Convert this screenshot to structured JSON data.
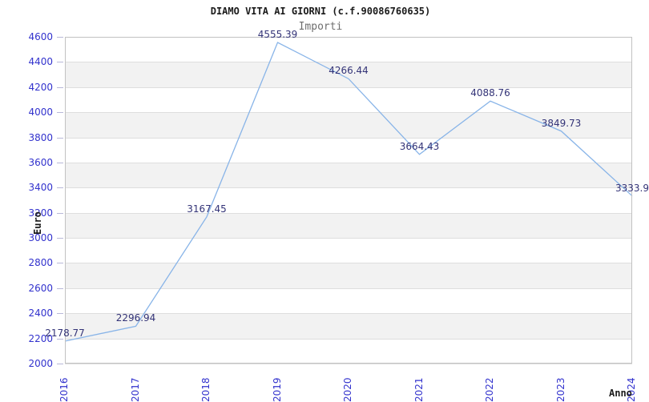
{
  "title": "DIAMO VITA AI GIORNI (c.f.90086760635)",
  "subtitle": "Importi",
  "y_axis_title": "Euro",
  "x_axis_title": "Anno",
  "chart_data": {
    "type": "line",
    "title": "DIAMO VITA AI GIORNI (c.f.90086760635)",
    "subtitle": "Importi",
    "xlabel": "Anno",
    "ylabel": "Euro",
    "x": [
      2016,
      2017,
      2018,
      2019,
      2020,
      2021,
      2022,
      2023,
      2024
    ],
    "series": [
      {
        "name": "Importi",
        "values": [
          2178.77,
          2296.94,
          3167.45,
          4555.39,
          4266.44,
          3664.43,
          4088.76,
          3849.73,
          3333.9
        ]
      }
    ],
    "point_labels": [
      "2178.77",
      "2296.94",
      "3167.45",
      "4555.39",
      "4266.44",
      "3664.43",
      "4088.76",
      "3849.73",
      "3333.9"
    ],
    "ylim": [
      2000,
      4600
    ],
    "ytick_step": 200,
    "yticks": [
      2000,
      2200,
      2400,
      2600,
      2800,
      3000,
      3200,
      3400,
      3600,
      3800,
      4000,
      4200,
      4400,
      4600
    ],
    "grid": "horizontal gridlines with alternating white/gray bands (white topmost)",
    "legend": "none",
    "x_tick_rotation": "vertical (reading bottom to top)"
  },
  "colors": {
    "background": "#ffffff",
    "title": "#1a1a1a",
    "subtitle": "#6e6e6e",
    "axis_tick_label": "#3232cd",
    "point_label": "#333377",
    "line": "#88b4e8",
    "band_gray": "#f2f2f2",
    "gridline": "#dedede",
    "plot_border": "#c2c2c2",
    "tick_mark": "#b8b8d8",
    "axis_title": "#1a1a1a"
  }
}
